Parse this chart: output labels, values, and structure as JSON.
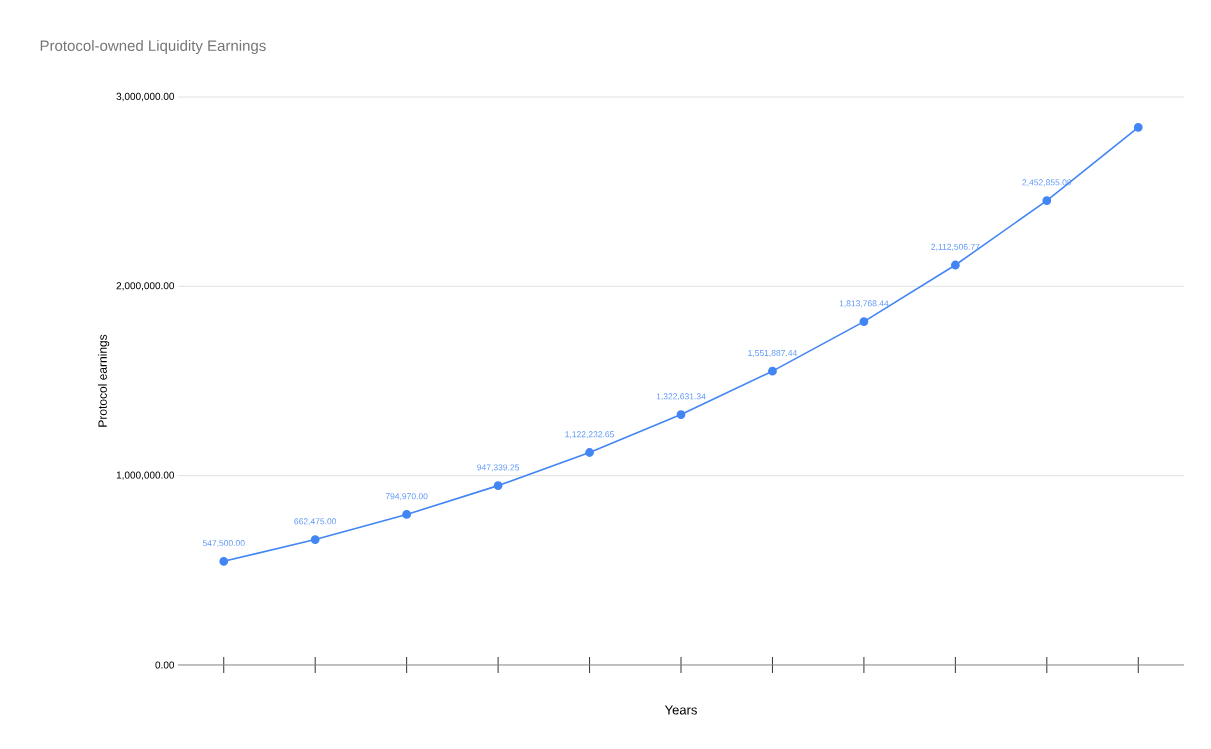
{
  "chart_data": {
    "type": "line",
    "title": "Protocol-owned Liquidity Earnings",
    "xlabel": "Years",
    "ylabel": "Protocol earnings",
    "categories": [
      null,
      null,
      null,
      null,
      null,
      null,
      null,
      null,
      null,
      null,
      null
    ],
    "series": [
      {
        "color": "#4285f4",
        "values": [
          547500,
          662475,
          794970,
          947339.25,
          1122232.65,
          1322631.34,
          1551887.44,
          1813768.44,
          2112506.77,
          2452855.09,
          2840000
        ],
        "value_labels": [
          "547,500.00",
          "662,475.00",
          "794,970.00",
          "947,339.25",
          "1,122,232.65",
          "1,322,631.34",
          "1,551,887.44",
          "1,813,768.44",
          "2,112,506.77",
          "2,452,855.09",
          null
        ]
      }
    ],
    "ylim": [
      0,
      3000000
    ],
    "yticks": [
      {
        "value": 0,
        "label": "0.00"
      },
      {
        "value": 1000000,
        "label": "1,000,000.00"
      },
      {
        "value": 2000000,
        "label": "2,000,000.00"
      },
      {
        "value": 3000000,
        "label": "3,000,000.00"
      }
    ],
    "grid": "y",
    "marker": "circle",
    "line_style": "solid"
  }
}
